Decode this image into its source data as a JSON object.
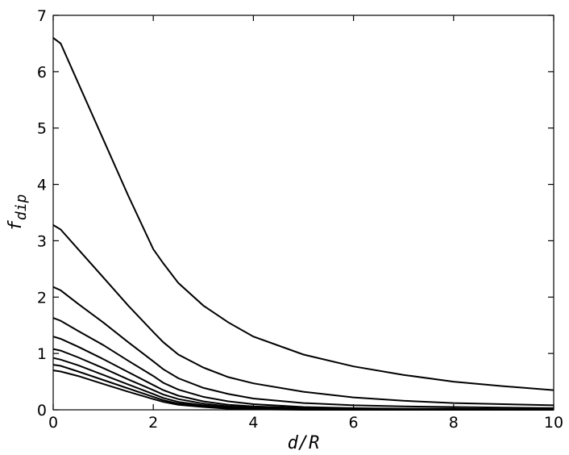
{
  "chart_data": {
    "type": "line",
    "xlabel": "d/R",
    "ylabel": "f",
    "ylabel_subscript": "dip",
    "xlim": [
      0,
      10
    ],
    "ylim": [
      0,
      7
    ],
    "xticks": [
      "0",
      "2",
      "4",
      "6",
      "8",
      "10"
    ],
    "yticks": [
      "0",
      "1",
      "2",
      "3",
      "4",
      "5",
      "6",
      "7"
    ],
    "grid": false,
    "series": [
      {
        "x": [
          0,
          0.15,
          0.5,
          1.0,
          1.5,
          2.0,
          2.2,
          2.5,
          3,
          3.5,
          4,
          5,
          6,
          7,
          8,
          9,
          10
        ],
        "y": [
          6.6,
          6.5,
          5.8,
          4.8,
          3.8,
          2.85,
          2.6,
          2.25,
          1.85,
          1.55,
          1.3,
          0.98,
          0.77,
          0.62,
          0.5,
          0.42,
          0.35
        ]
      },
      {
        "x": [
          0,
          0.15,
          0.5,
          1.0,
          1.5,
          2.0,
          2.2,
          2.5,
          3,
          3.5,
          4,
          5,
          6,
          7,
          8,
          9,
          10
        ],
        "y": [
          3.28,
          3.2,
          2.85,
          2.35,
          1.85,
          1.38,
          1.2,
          0.98,
          0.75,
          0.58,
          0.47,
          0.32,
          0.22,
          0.16,
          0.12,
          0.1,
          0.08
        ]
      },
      {
        "x": [
          0,
          0.15,
          0.5,
          1.0,
          1.5,
          2.0,
          2.2,
          2.5,
          3,
          3.5,
          4,
          5,
          6,
          7,
          8,
          9,
          10
        ],
        "y": [
          2.18,
          2.12,
          1.88,
          1.55,
          1.2,
          0.86,
          0.72,
          0.56,
          0.39,
          0.28,
          0.2,
          0.12,
          0.08,
          0.06,
          0.05,
          0.04,
          0.03
        ]
      },
      {
        "x": [
          0,
          0.15,
          0.5,
          1.0,
          1.5,
          2.0,
          2.2,
          2.5,
          3,
          3.5,
          4,
          5,
          6,
          7,
          8,
          9,
          10
        ],
        "y": [
          1.63,
          1.58,
          1.4,
          1.15,
          0.87,
          0.6,
          0.48,
          0.36,
          0.23,
          0.15,
          0.1,
          0.05,
          0.03,
          0.02,
          0.02,
          0.01,
          0.01
        ]
      },
      {
        "x": [
          0,
          0.15,
          0.5,
          1.0,
          1.5,
          2.0,
          2.2,
          2.5,
          3,
          3.5,
          4,
          5,
          6,
          7,
          8,
          9,
          10
        ],
        "y": [
          1.3,
          1.26,
          1.12,
          0.9,
          0.67,
          0.44,
          0.35,
          0.25,
          0.15,
          0.09,
          0.06,
          0.03,
          0.02,
          0.01,
          0.01,
          0.01,
          0.0
        ]
      },
      {
        "x": [
          0,
          0.15,
          0.5,
          1.0,
          1.5,
          2.0,
          2.2,
          2.5,
          3,
          3.5,
          4,
          5,
          6,
          7,
          8,
          9,
          10
        ],
        "y": [
          1.08,
          1.05,
          0.93,
          0.74,
          0.54,
          0.35,
          0.27,
          0.19,
          0.11,
          0.06,
          0.04,
          0.02,
          0.01,
          0.01,
          0.0,
          0.0,
          0.0
        ]
      },
      {
        "x": [
          0,
          0.15,
          0.5,
          1.0,
          1.5,
          2.0,
          2.2,
          2.5,
          3,
          3.5,
          4,
          5,
          6,
          7,
          8,
          9,
          10
        ],
        "y": [
          0.92,
          0.89,
          0.79,
          0.62,
          0.45,
          0.28,
          0.21,
          0.14,
          0.08,
          0.04,
          0.03,
          0.01,
          0.01,
          0.0,
          0.0,
          0.0,
          0.0
        ]
      },
      {
        "x": [
          0,
          0.15,
          0.5,
          1.0,
          1.5,
          2.0,
          2.2,
          2.5,
          3,
          3.5,
          4,
          5,
          6,
          7,
          8,
          9,
          10
        ],
        "y": [
          0.8,
          0.78,
          0.68,
          0.53,
          0.38,
          0.23,
          0.17,
          0.11,
          0.06,
          0.03,
          0.02,
          0.01,
          0.0,
          0.0,
          0.0,
          0.0,
          0.0
        ]
      },
      {
        "x": [
          0,
          0.15,
          0.5,
          1.0,
          1.5,
          2.0,
          2.2,
          2.5,
          3,
          3.5,
          4,
          5,
          6,
          7,
          8,
          9,
          10
        ],
        "y": [
          0.7,
          0.68,
          0.6,
          0.46,
          0.32,
          0.19,
          0.14,
          0.09,
          0.05,
          0.02,
          0.01,
          0.0,
          0.0,
          0.0,
          0.0,
          0.0,
          0.0
        ]
      }
    ]
  }
}
